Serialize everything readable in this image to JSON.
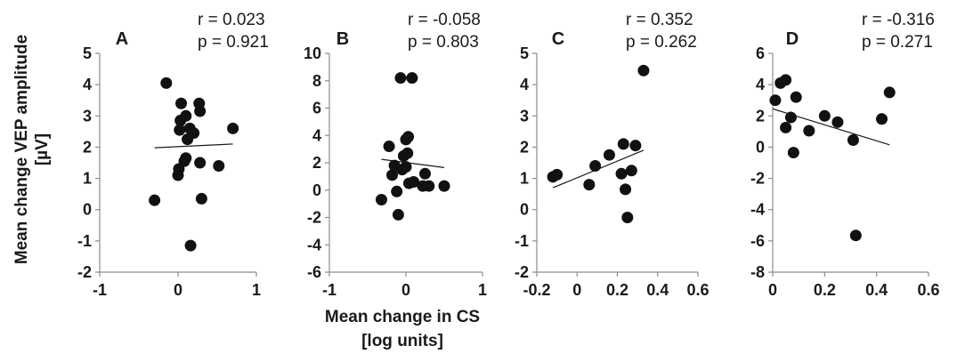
{
  "chart_data": {
    "type": "scatter",
    "ylabel": [
      "Mean change VEP amplitude",
      "[µV]"
    ],
    "xlabel": [
      "Mean change in CS",
      "[log units]"
    ],
    "panels": [
      {
        "letter": "A",
        "stats": [
          "r = 0.023",
          "p = 0.921"
        ],
        "xlim": [
          -1,
          1
        ],
        "xticks": [
          -1,
          0,
          1
        ],
        "xtick_labels": [
          "-1",
          "0",
          "1"
        ],
        "ylim": [
          -2,
          5
        ],
        "yticks": [
          -2,
          -1,
          0,
          1,
          2,
          3,
          4,
          5
        ],
        "ytick_labels": [
          "-2",
          "-1",
          "0",
          "1",
          "2",
          "3",
          "4",
          "5"
        ],
        "points": [
          {
            "x": -0.3,
            "y": 0.3
          },
          {
            "x": -0.15,
            "y": 4.05
          },
          {
            "x": 0.0,
            "y": 1.1
          },
          {
            "x": 0.01,
            "y": 1.3
          },
          {
            "x": 0.02,
            "y": 2.55
          },
          {
            "x": 0.03,
            "y": 2.85
          },
          {
            "x": 0.04,
            "y": 3.4
          },
          {
            "x": 0.08,
            "y": 1.55
          },
          {
            "x": 0.1,
            "y": 3.0
          },
          {
            "x": 0.1,
            "y": 1.65
          },
          {
            "x": 0.12,
            "y": 2.25
          },
          {
            "x": 0.15,
            "y": 2.6
          },
          {
            "x": 0.16,
            "y": -1.15
          },
          {
            "x": 0.2,
            "y": 2.45
          },
          {
            "x": 0.27,
            "y": 3.4
          },
          {
            "x": 0.28,
            "y": 3.15
          },
          {
            "x": 0.28,
            "y": 1.5
          },
          {
            "x": 0.3,
            "y": 0.35
          },
          {
            "x": 0.52,
            "y": 1.4
          },
          {
            "x": 0.7,
            "y": 2.6
          }
        ],
        "trendline": {
          "x": [
            -0.3,
            0.7
          ],
          "y": [
            1.98,
            2.1
          ]
        }
      },
      {
        "letter": "B",
        "stats": [
          "r = -0.058",
          "p = 0.803"
        ],
        "xlim": [
          -1,
          1
        ],
        "xticks": [
          -1,
          0,
          1
        ],
        "xtick_labels": [
          "-1",
          "0",
          "1"
        ],
        "ylim": [
          -6,
          10
        ],
        "yticks": [
          -6,
          -4,
          -2,
          0,
          2,
          4,
          6,
          8,
          10
        ],
        "ytick_labels": [
          "-6",
          "-4",
          "-2",
          "0",
          "2",
          "4",
          "6",
          "8",
          "10"
        ],
        "points": [
          {
            "x": -0.32,
            "y": -0.7
          },
          {
            "x": -0.22,
            "y": 3.2
          },
          {
            "x": -0.18,
            "y": 1.1
          },
          {
            "x": -0.15,
            "y": 1.8
          },
          {
            "x": -0.12,
            "y": -0.1
          },
          {
            "x": -0.1,
            "y": -1.8
          },
          {
            "x": -0.07,
            "y": 8.2
          },
          {
            "x": -0.05,
            "y": 1.5
          },
          {
            "x": -0.03,
            "y": 2.5
          },
          {
            "x": 0.0,
            "y": 1.7
          },
          {
            "x": 0.0,
            "y": 3.7
          },
          {
            "x": 0.02,
            "y": 2.7
          },
          {
            "x": 0.03,
            "y": 3.9
          },
          {
            "x": 0.04,
            "y": 0.5
          },
          {
            "x": 0.08,
            "y": 8.2
          },
          {
            "x": 0.1,
            "y": 0.6
          },
          {
            "x": 0.22,
            "y": 0.3
          },
          {
            "x": 0.25,
            "y": 1.2
          },
          {
            "x": 0.3,
            "y": 0.3
          },
          {
            "x": 0.5,
            "y": 0.3
          }
        ],
        "trendline": {
          "x": [
            -0.32,
            0.5
          ],
          "y": [
            2.25,
            1.65
          ]
        }
      },
      {
        "letter": "C",
        "stats": [
          "r = 0.352",
          "p = 0.262"
        ],
        "xlim": [
          -0.2,
          0.6
        ],
        "xticks": [
          -0.2,
          0,
          0.2,
          0.4,
          0.6
        ],
        "xtick_labels": [
          "-0.2",
          "0",
          "0.2",
          "0.4",
          "0.6"
        ],
        "ylim": [
          -2,
          5
        ],
        "yticks": [
          -2,
          -1,
          0,
          1,
          2,
          3,
          4,
          5
        ],
        "ytick_labels": [
          "-2",
          "-1",
          "0",
          "1",
          "2",
          "3",
          "4",
          "5"
        ],
        "points": [
          {
            "x": -0.12,
            "y": 1.05
          },
          {
            "x": -0.1,
            "y": 1.12
          },
          {
            "x": 0.06,
            "y": 0.8
          },
          {
            "x": 0.09,
            "y": 1.4
          },
          {
            "x": 0.16,
            "y": 1.75
          },
          {
            "x": 0.22,
            "y": 1.15
          },
          {
            "x": 0.23,
            "y": 2.1
          },
          {
            "x": 0.24,
            "y": 0.65
          },
          {
            "x": 0.25,
            "y": -0.25
          },
          {
            "x": 0.27,
            "y": 1.25
          },
          {
            "x": 0.29,
            "y": 2.05
          },
          {
            "x": 0.33,
            "y": 4.45
          }
        ],
        "trendline": {
          "x": [
            -0.12,
            0.33
          ],
          "y": [
            0.7,
            1.9
          ]
        }
      },
      {
        "letter": "D",
        "stats": [
          "r = -0.316",
          "p = 0.271"
        ],
        "xlim": [
          0,
          0.6
        ],
        "xticks": [
          0,
          0.2,
          0.4,
          0.6
        ],
        "xtick_labels": [
          "0",
          "0.2",
          "0.4",
          "0.6"
        ],
        "ylim": [
          -8,
          6
        ],
        "yticks": [
          -8,
          -6,
          -4,
          -2,
          0,
          2,
          4,
          6
        ],
        "ytick_labels": [
          "-8",
          "-6",
          "-4",
          "-2",
          "0",
          "2",
          "4",
          "6"
        ],
        "points": [
          {
            "x": 0.01,
            "y": 3.0
          },
          {
            "x": 0.03,
            "y": 4.1
          },
          {
            "x": 0.05,
            "y": 4.3
          },
          {
            "x": 0.05,
            "y": 1.25
          },
          {
            "x": 0.07,
            "y": 1.9
          },
          {
            "x": 0.08,
            "y": -0.35
          },
          {
            "x": 0.09,
            "y": 3.2
          },
          {
            "x": 0.14,
            "y": 1.05
          },
          {
            "x": 0.2,
            "y": 2.0
          },
          {
            "x": 0.25,
            "y": 1.6
          },
          {
            "x": 0.31,
            "y": 0.45
          },
          {
            "x": 0.32,
            "y": -5.65
          },
          {
            "x": 0.42,
            "y": 1.8
          },
          {
            "x": 0.45,
            "y": 3.5
          }
        ],
        "trendline": {
          "x": [
            0.0,
            0.45
          ],
          "y": [
            2.45,
            0.15
          ]
        }
      }
    ]
  }
}
